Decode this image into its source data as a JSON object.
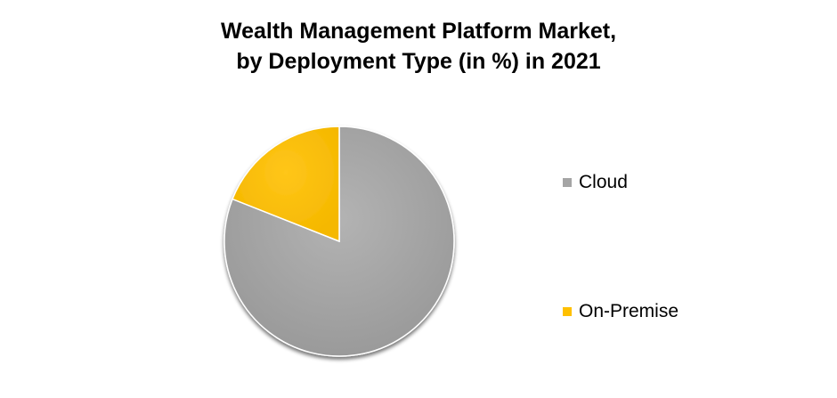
{
  "chart_data": {
    "type": "pie",
    "title": "Wealth Management Platform Market, by Deployment Type (in %) in 2021",
    "title_lines": [
      "Wealth Management Platform Market,",
      "by Deployment Type (in %) in 2021"
    ],
    "categories": [
      "Cloud",
      "On-Premise"
    ],
    "values": [
      81,
      19
    ],
    "colors": [
      "#A5A5A5",
      "#FFC000"
    ],
    "legend_position": "right"
  }
}
